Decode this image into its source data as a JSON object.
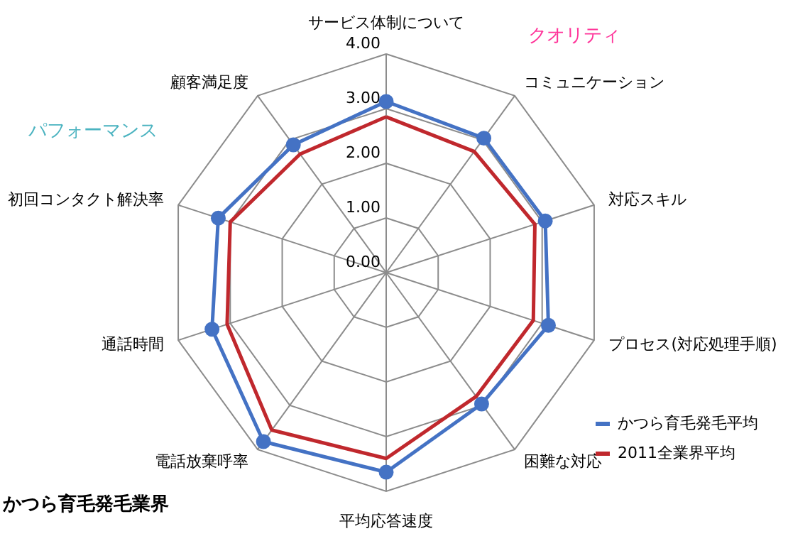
{
  "chart_data": {
    "type": "radar",
    "categories": [
      "サービス体制について",
      "コミュニケーション",
      "対応スキル",
      "プロセス(対応処理手順)",
      "困難な対応",
      "平均応答速度",
      "電話放棄呼率",
      "通話時間",
      "初回コンタクト解決率",
      "顧客満足度"
    ],
    "series": [
      {
        "name": "かつら育毛発毛平均",
        "color": "#4472c4",
        "marker": "circle",
        "values": [
          3.13,
          3.04,
          3.06,
          3.12,
          2.97,
          3.65,
          3.82,
          3.35,
          3.23,
          2.89
        ]
      },
      {
        "name": "2011全業界平均",
        "color": "#c0282d",
        "marker": "none",
        "values": [
          2.85,
          2.74,
          2.86,
          2.83,
          2.8,
          3.4,
          3.56,
          3.06,
          3.0,
          2.68
        ]
      }
    ],
    "ylim": [
      0,
      4
    ],
    "yticks": [
      {
        "value": 0,
        "label": "0.00"
      },
      {
        "value": 1,
        "label": "1.00"
      },
      {
        "value": 2,
        "label": "2.00"
      },
      {
        "value": 3,
        "label": "3.00"
      },
      {
        "value": 4,
        "label": "4.00"
      }
    ],
    "grid": true,
    "legend": "bottom right",
    "annotations": [
      "クオリティ",
      "パフォーマンス",
      "かつら育毛発毛業界"
    ]
  }
}
